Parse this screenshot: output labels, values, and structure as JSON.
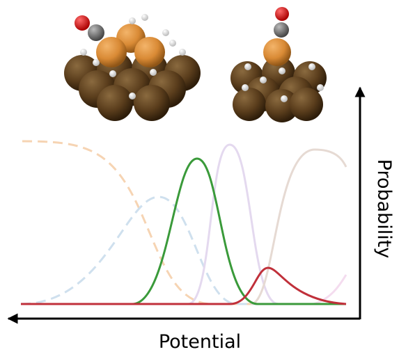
{
  "x_label": "Potential",
  "y_label": "Probability"
}
